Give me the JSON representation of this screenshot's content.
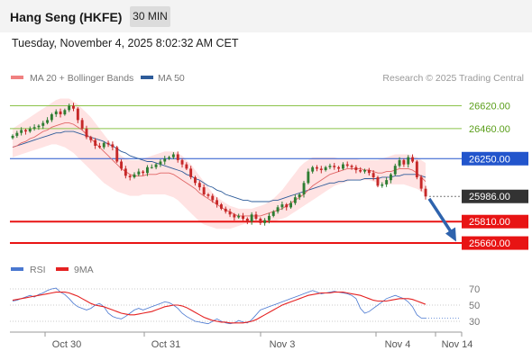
{
  "header": {
    "instrument": "Hang Seng (HKFE)",
    "timeframe_label": "30 MIN",
    "timestamp": "Tuesday, November 4, 2025 8:02:32 AM CET"
  },
  "legend": {
    "items": [
      {
        "label": "MA 20 + Bollinger Bands",
        "color": "#f08080"
      },
      {
        "label": "MA 50",
        "color": "#2e5c9a"
      }
    ],
    "credit": "Research © 2025 Trading Central"
  },
  "rsi_legend": {
    "items": [
      {
        "label": "RSI",
        "color": "#4a78d0"
      },
      {
        "label": "9MA",
        "color": "#e52222"
      }
    ]
  },
  "colors": {
    "up_candle": "#2e7d32",
    "down_candle": "#c62828",
    "resistance_green": "#8bc34a",
    "pivot_blue": "#2255cc",
    "support_red": "#e81414",
    "arrow": "#2e63ad",
    "price_tag": "#333333",
    "band_fill": "#ffd9d9"
  },
  "chart_data": [
    {
      "type": "candlestick",
      "title": "",
      "x_labels": [
        "Oct 30",
        "Oct 31",
        "Nov 3",
        "Nov 4",
        "Nov 14"
      ],
      "y_range": [
        25610,
        26730
      ],
      "levels": [
        {
          "value": 26620,
          "label": "26620.00",
          "style": "resistance"
        },
        {
          "value": 26460,
          "label": "26460.00",
          "style": "resistance"
        },
        {
          "value": 26250,
          "label": "26250.00",
          "style": "pivot"
        },
        {
          "value": 25986,
          "label": "25986.00",
          "style": "current"
        },
        {
          "value": 25810,
          "label": "25810.00",
          "style": "support"
        },
        {
          "value": 25660,
          "label": "25660.00",
          "style": "support"
        }
      ],
      "forecast_arrow": {
        "from": 25970,
        "to": 25670
      },
      "close": [
        26410,
        26430,
        26450,
        26440,
        26460,
        26470,
        26480,
        26500,
        26520,
        26560,
        26580,
        26560,
        26590,
        26620,
        26600,
        26520,
        26460,
        26400,
        26380,
        26340,
        26330,
        26360,
        26350,
        26330,
        26230,
        26180,
        26130,
        26120,
        26140,
        26160,
        26150,
        26190,
        26190,
        26210,
        26230,
        26250,
        26260,
        26280,
        26240,
        26210,
        26180,
        26120,
        26080,
        26050,
        26000,
        25990,
        25960,
        25930,
        25900,
        25880,
        25860,
        25840,
        25850,
        25830,
        25810,
        25860,
        25830,
        25800,
        25820,
        25850,
        25880,
        25910,
        25930,
        25910,
        25940,
        25980,
        26000,
        26080,
        26160,
        26190,
        26180,
        26170,
        26190,
        26200,
        26190,
        26180,
        26210,
        26200,
        26190,
        26170,
        26160,
        26170,
        26150,
        26120,
        26060,
        26070,
        26100,
        26140,
        26200,
        26240,
        26210,
        26260,
        26230,
        26120,
        26040,
        25986
      ],
      "ma20": [
        26330,
        26340,
        26360,
        26370,
        26390,
        26400,
        26420,
        26440,
        26450,
        26470,
        26480,
        26490,
        26500,
        26500,
        26490,
        26470,
        26450,
        26420,
        26390,
        26360,
        26330,
        26300,
        26270,
        26240,
        26210,
        26180,
        26160,
        26140,
        26130,
        26130,
        26130,
        26140,
        26140,
        26140,
        26150,
        26150,
        26150,
        26140,
        26120,
        26100,
        26080,
        26060,
        26040,
        26010,
        25990,
        25970,
        25950,
        25930,
        25910,
        25890,
        25880,
        25860,
        25850,
        25850,
        25850,
        25850,
        25850,
        25850,
        25860,
        25870,
        25880,
        25890,
        25900,
        25920,
        25940,
        25960,
        25980,
        26000,
        26030,
        26060,
        26080,
        26100,
        26120,
        26140,
        26150,
        26160,
        26170,
        26180,
        26180,
        26180,
        26180,
        26170,
        26170,
        26160,
        26150,
        26150,
        26160,
        26160,
        26170,
        26180,
        26180,
        26180,
        26170,
        26150,
        26120,
        26090
      ],
      "ma50": [
        26330,
        26340,
        26350,
        26360,
        26370,
        26380,
        26390,
        26400,
        26410,
        26420,
        26430,
        26430,
        26440,
        26440,
        26440,
        26430,
        26420,
        26410,
        26400,
        26390,
        26380,
        26370,
        26350,
        26340,
        26320,
        26300,
        26290,
        26270,
        26260,
        26250,
        26240,
        26230,
        26230,
        26220,
        26210,
        26200,
        26190,
        26180,
        26170,
        26160,
        26140,
        26130,
        26110,
        26100,
        26080,
        26060,
        26050,
        26030,
        26020,
        26000,
        25990,
        25980,
        25970,
        25960,
        25960,
        25950,
        25950,
        25950,
        25950,
        25950,
        25960,
        25960,
        25970,
        25980,
        25990,
        26000,
        26010,
        26020,
        26030,
        26040,
        26050,
        26060,
        26070,
        26080,
        26080,
        26090,
        26090,
        26100,
        26100,
        26100,
        26100,
        26110,
        26110,
        26110,
        26110,
        26120,
        26120,
        26120,
        26130,
        26130,
        26140,
        26140,
        26140,
        26140,
        26130,
        26120
      ],
      "bb_upper": [
        26460,
        26480,
        26500,
        26520,
        26540,
        26560,
        26580,
        26600,
        26620,
        26640,
        26660,
        26670,
        26670,
        26670,
        26650,
        26630,
        26600,
        26570,
        26540,
        26500,
        26460,
        26420,
        26380,
        26340,
        26300,
        26270,
        26250,
        26240,
        26240,
        26240,
        26250,
        26260,
        26270,
        26280,
        26290,
        26300,
        26300,
        26300,
        26290,
        26270,
        26240,
        26210,
        26170,
        26130,
        26090,
        26050,
        26010,
        25980,
        25960,
        25940,
        25920,
        25910,
        25900,
        25900,
        25900,
        25900,
        25910,
        25920,
        25930,
        25950,
        25970,
        26000,
        26030,
        26070,
        26110,
        26150,
        26190,
        26220,
        26240,
        26260,
        26260,
        26260,
        26260,
        26260,
        26260,
        26250,
        26250,
        26250,
        26250,
        26250,
        26240,
        26240,
        26240,
        26240,
        26240,
        26250,
        26260,
        26270,
        26280,
        26280,
        26280,
        26280,
        26270,
        26260,
        26240,
        26220
      ],
      "bb_lower": [
        26260,
        26270,
        26280,
        26290,
        26300,
        26310,
        26320,
        26330,
        26340,
        26350,
        26350,
        26340,
        26330,
        26310,
        26290,
        26260,
        26230,
        26200,
        26170,
        26140,
        26110,
        26080,
        26060,
        26040,
        26020,
        26010,
        26000,
        25990,
        25990,
        25990,
        26000,
        26000,
        26000,
        26000,
        26000,
        26000,
        25990,
        25980,
        25960,
        25930,
        25900,
        25870,
        25840,
        25810,
        25790,
        25780,
        25770,
        25760,
        25760,
        25760,
        25760,
        25770,
        25780,
        25790,
        25800,
        25800,
        25800,
        25800,
        25800,
        25810,
        25810,
        25820,
        25830,
        25840,
        25860,
        25880,
        25900,
        25920,
        25940,
        25960,
        25980,
        26000,
        26020,
        26040,
        26060,
        26070,
        26080,
        26090,
        26100,
        26100,
        26100,
        26100,
        26100,
        26090,
        26080,
        26070,
        26070,
        26070,
        26070,
        26070,
        26070,
        26060,
        26050,
        26040,
        26020,
        26000
      ]
    },
    {
      "type": "line",
      "title": "",
      "y_ticks": [
        70,
        50,
        30
      ],
      "y_range": [
        20,
        80
      ],
      "series": [
        {
          "name": "RSI",
          "values": [
            55,
            56,
            58,
            60,
            62,
            60,
            63,
            65,
            68,
            70,
            71,
            66,
            63,
            58,
            52,
            48,
            46,
            44,
            46,
            50,
            52,
            48,
            40,
            36,
            34,
            33,
            36,
            40,
            44,
            46,
            44,
            46,
            48,
            50,
            52,
            54,
            53,
            50,
            46,
            40,
            36,
            33,
            30,
            29,
            28,
            27,
            30,
            33,
            30,
            28,
            27,
            28,
            31,
            29,
            28,
            32,
            38,
            44,
            46,
            48,
            50,
            52,
            54,
            56,
            58,
            60,
            62,
            64,
            66,
            68,
            66,
            64,
            65,
            66,
            67,
            66,
            65,
            64,
            62,
            58,
            46,
            40,
            42,
            46,
            50,
            54,
            58,
            60,
            62,
            60,
            58,
            54,
            48,
            38,
            34,
            34
          ]
        },
        {
          "name": "9MA",
          "values": [
            56,
            57,
            58,
            59,
            60,
            61,
            62,
            63,
            64,
            65,
            66,
            66,
            66,
            65,
            63,
            61,
            58,
            55,
            52,
            50,
            49,
            48,
            46,
            44,
            42,
            40,
            39,
            38,
            38,
            39,
            40,
            41,
            42,
            44,
            46,
            48,
            49,
            50,
            50,
            49,
            47,
            44,
            41,
            38,
            35,
            33,
            31,
            30,
            29,
            29,
            28,
            28,
            28,
            28,
            29,
            30,
            32,
            35,
            38,
            41,
            44,
            47,
            50,
            52,
            54,
            56,
            58,
            60,
            62,
            63,
            64,
            65,
            65,
            65,
            66,
            66,
            66,
            65,
            64,
            63,
            62,
            60,
            58,
            56,
            55,
            55,
            55,
            56,
            57,
            58,
            58,
            58,
            57,
            55,
            53,
            51
          ]
        }
      ]
    }
  ]
}
